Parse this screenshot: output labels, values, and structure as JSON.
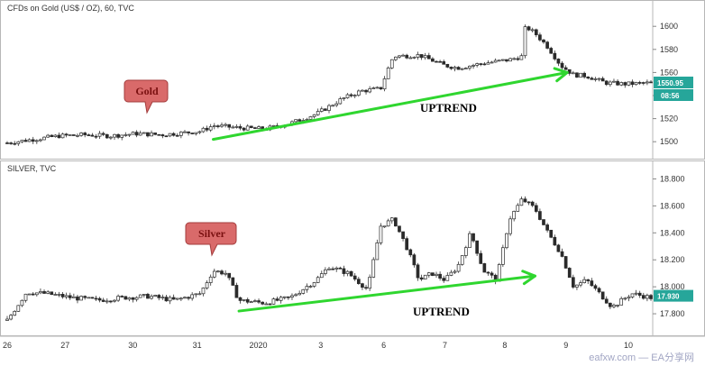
{
  "chart_data": [
    {
      "type": "candlestick",
      "title": "CFDs on Gold (US$ / OZ), 60, TVC",
      "callout": "Gold",
      "annotation": "UPTREND",
      "ylim": [
        1490,
        1615
      ],
      "y_ticks": [
        1500,
        1520,
        1540,
        1560,
        1580,
        1600
      ],
      "last_price": "1550.95",
      "countdown": "08:56",
      "price_color": "#26a69a",
      "trend_line": {
        "from": [
          0.32,
          1502
        ],
        "to": [
          0.87,
          1560
        ]
      },
      "series": [
        {
          "name": "price",
          "x": [
            0.0,
            0.04,
            0.08,
            0.12,
            0.16,
            0.2,
            0.24,
            0.28,
            0.3,
            0.32,
            0.36,
            0.4,
            0.44,
            0.48,
            0.52,
            0.55,
            0.58,
            0.595,
            0.6,
            0.64,
            0.68,
            0.7,
            0.74,
            0.78,
            0.8,
            0.805,
            0.82,
            0.84,
            0.86,
            0.88,
            0.9,
            0.93,
            0.96,
            1.0
          ],
          "values": [
            1499,
            1502,
            1505,
            1506,
            1505,
            1507,
            1506,
            1508,
            1509,
            1514,
            1512,
            1511,
            1516,
            1524,
            1537,
            1544,
            1546,
            1568,
            1574,
            1575,
            1566,
            1564,
            1568,
            1571,
            1574,
            1600,
            1594,
            1582,
            1566,
            1558,
            1557,
            1551,
            1550,
            1551
          ]
        }
      ]
    },
    {
      "type": "candlestick",
      "title": "SILVER, TVC",
      "callout": "Silver",
      "annotation": "UPTREND",
      "ylim": [
        17.68,
        18.87
      ],
      "y_ticks": [
        17.8,
        18.0,
        18.2,
        18.4,
        18.6,
        18.8
      ],
      "last_price": "17.930",
      "price_color": "#26a69a",
      "trend_line": {
        "from": [
          0.36,
          17.82
        ],
        "to": [
          0.82,
          18.08
        ]
      },
      "series": [
        {
          "name": "price",
          "x": [
            0.0,
            0.03,
            0.06,
            0.1,
            0.14,
            0.18,
            0.22,
            0.26,
            0.3,
            0.32,
            0.34,
            0.36,
            0.4,
            0.44,
            0.48,
            0.5,
            0.53,
            0.56,
            0.58,
            0.6,
            0.62,
            0.64,
            0.66,
            0.68,
            0.7,
            0.72,
            0.74,
            0.76,
            0.78,
            0.8,
            0.82,
            0.84,
            0.86,
            0.88,
            0.9,
            0.92,
            0.94,
            0.97,
            1.0
          ],
          "values": [
            17.75,
            17.96,
            17.95,
            17.92,
            17.9,
            17.92,
            17.93,
            17.9,
            17.95,
            18.12,
            18.1,
            17.9,
            17.88,
            17.92,
            18.05,
            18.15,
            18.1,
            17.98,
            18.45,
            18.5,
            18.3,
            18.05,
            18.1,
            18.05,
            18.15,
            18.4,
            18.12,
            18.05,
            18.5,
            18.65,
            18.58,
            18.4,
            18.25,
            18.0,
            18.05,
            17.95,
            17.85,
            17.95,
            17.92
          ]
        }
      ]
    }
  ],
  "x_axis": {
    "ticks": [
      "26",
      "27",
      "30",
      "31",
      "2020",
      "3",
      "6",
      "7",
      "8",
      "9",
      "10"
    ]
  },
  "watermark": "eafxw.com — EA分享网"
}
